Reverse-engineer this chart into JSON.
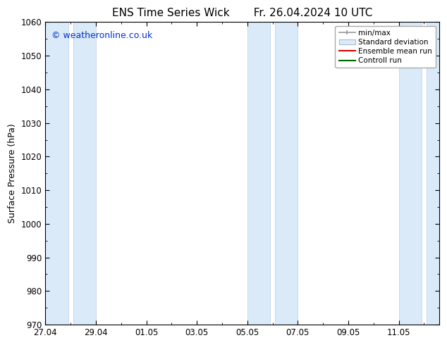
{
  "title_left": "ENS Time Series Wick",
  "title_right": "Fr. 26.04.2024 10 UTC",
  "ylabel": "Surface Pressure (hPa)",
  "ylim": [
    970,
    1060
  ],
  "yticks": [
    970,
    980,
    990,
    1000,
    1010,
    1020,
    1030,
    1040,
    1050,
    1060
  ],
  "xtick_labels": [
    "27.04",
    "29.04",
    "01.05",
    "03.05",
    "05.05",
    "07.05",
    "09.05",
    "11.05"
  ],
  "xtick_positions_days": [
    0,
    2,
    4,
    6,
    8,
    10,
    12,
    14
  ],
  "shaded_bands": [
    {
      "start_day": 0.0,
      "end_day": 0.9
    },
    {
      "start_day": 1.1,
      "end_day": 2.0
    },
    {
      "start_day": 8.0,
      "end_day": 8.9
    },
    {
      "start_day": 9.1,
      "end_day": 10.0
    },
    {
      "start_day": 14.0,
      "end_day": 14.9
    },
    {
      "start_day": 15.1,
      "end_day": 15.6
    }
  ],
  "band_color": "#daeaf8",
  "band_edge_color": "#b8d0e8",
  "background_color": "#ffffff",
  "watermark_text": "© weatheronline.co.uk",
  "watermark_color": "#0033cc",
  "watermark_fontsize": 9,
  "legend_labels": [
    "min/max",
    "Standard deviation",
    "Ensemble mean run",
    "Controll run"
  ],
  "title_fontsize": 11,
  "axis_fontsize": 9,
  "tick_fontsize": 8.5,
  "x_min": 0,
  "x_max": 15.6
}
